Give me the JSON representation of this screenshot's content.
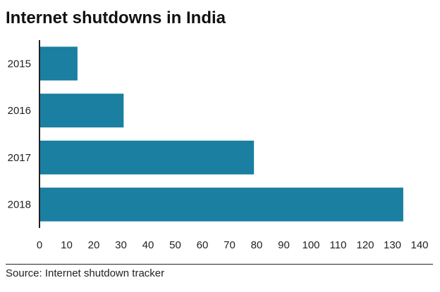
{
  "chart_data": {
    "type": "bar",
    "orientation": "horizontal",
    "title": "Internet shutdowns in India",
    "categories": [
      "2015",
      "2016",
      "2017",
      "2018"
    ],
    "values": [
      14,
      31,
      79,
      134
    ],
    "xlabel": "",
    "ylabel": "",
    "xlim": [
      0,
      140
    ],
    "xticks": [
      "0",
      "10",
      "20",
      "30",
      "40",
      "50",
      "60",
      "70",
      "80",
      "90",
      "100",
      "110",
      "120",
      "130",
      "140"
    ],
    "grid": false,
    "bar_color": "#1a7fa0",
    "source": "Source: Internet shutdown tracker"
  }
}
